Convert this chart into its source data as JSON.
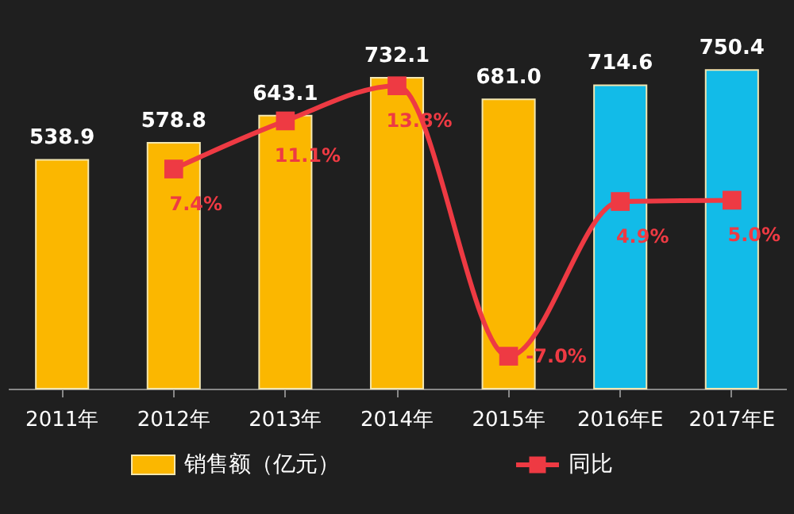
{
  "chart_data": {
    "type": "bar",
    "categories": [
      "2011年",
      "2012年",
      "2013年",
      "2014年",
      "2015年",
      "2016年E",
      "2017年E"
    ],
    "series": [
      {
        "name": "销售额（亿元）",
        "colors": [
          "#fbb700",
          "#fbb700",
          "#fbb700",
          "#fbb700",
          "#fbb700",
          "#12bbe8",
          "#12bbe8"
        ],
        "values": [
          538.9,
          578.8,
          643.1,
          732.1,
          681.0,
          714.6,
          750.4
        ],
        "value_labels": [
          "538.9",
          "578.8",
          "643.1",
          "732.1",
          "681.0",
          "714.6",
          "750.4"
        ]
      },
      {
        "name": "同比",
        "type": "line",
        "axis": "y2",
        "color": "#ee3a43",
        "marker": "square",
        "values": [
          null,
          7.4,
          11.1,
          13.8,
          -7.0,
          4.9,
          5.0
        ],
        "value_labels": [
          null,
          "7.4%",
          "11.1%",
          "13.8%",
          "-7.0%",
          "4.9%",
          "5.0%"
        ]
      }
    ],
    "legend": "bottom",
    "grid": false
  }
}
